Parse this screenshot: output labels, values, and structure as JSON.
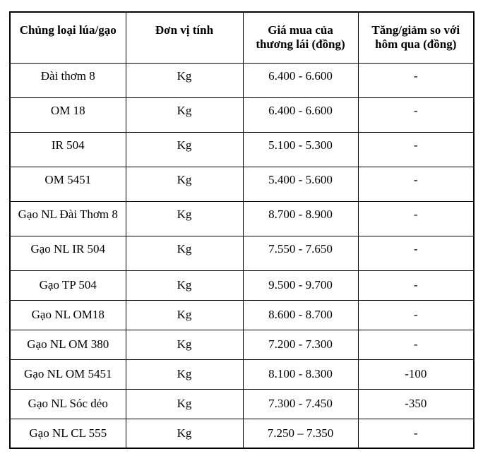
{
  "chart_data": {
    "type": "table",
    "title": "",
    "columns": [
      "Chủng loại lúa/gạo",
      "Đơn vị tính",
      "Giá mua của thương lái (đồng)",
      "Tăng/giảm so với hôm qua (đồng)"
    ],
    "rows": [
      [
        "Đài thơm 8",
        "Kg",
        "6.400 - 6.600",
        "-"
      ],
      [
        "OM 18",
        "Kg",
        "6.400 - 6.600",
        "-"
      ],
      [
        "IR 504",
        "Kg",
        "5.100 - 5.300",
        "-"
      ],
      [
        "OM 5451",
        "Kg",
        "5.400 - 5.600",
        "-"
      ],
      [
        "Gạo NL Đài Thơm 8",
        "Kg",
        "8.700 - 8.900",
        "-"
      ],
      [
        "Gạo NL IR 504",
        "Kg",
        "7.550 - 7.650",
        "-"
      ],
      [
        "Gạo TP 504",
        "Kg",
        "9.500 - 9.700",
        "-"
      ],
      [
        "Gạo NL OM18",
        "Kg",
        "8.600 - 8.700",
        "-"
      ],
      [
        "Gạo NL OM 380",
        "Kg",
        "7.200 - 7.300",
        "-"
      ],
      [
        "Gạo NL OM 5451",
        "Kg",
        "8.100 - 8.300",
        "-100"
      ],
      [
        "Gạo NL Sóc dẻo",
        "Kg",
        "7.300 - 7.450",
        "-350"
      ],
      [
        "Gạo NL CL 555",
        "Kg",
        "7.250 – 7.350",
        "-"
      ]
    ],
    "layout": {
      "grid": "on",
      "border_color": "#000000",
      "background": "#ffffff",
      "text_color": "#000000"
    }
  }
}
